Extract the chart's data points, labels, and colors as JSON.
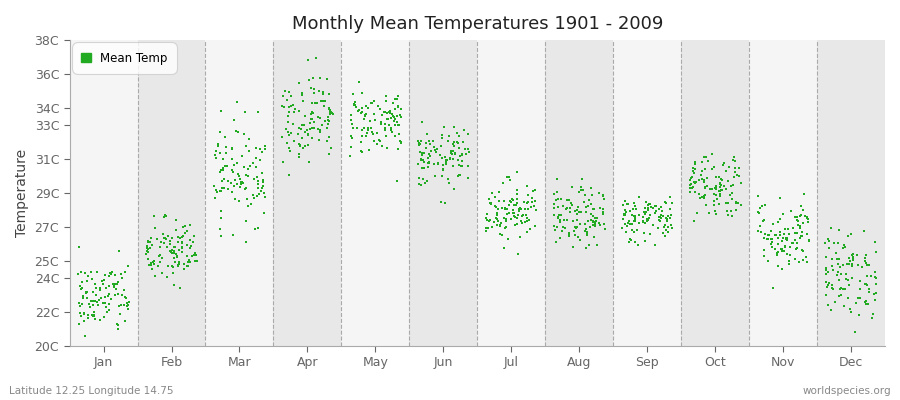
{
  "title": "Monthly Mean Temperatures 1901 - 2009",
  "ylabel": "Temperature",
  "bottom_left": "Latitude 12.25 Longitude 14.75",
  "bottom_right": "worldspecies.org",
  "legend_label": "Mean Temp",
  "dot_color": "#22aa22",
  "figure_bg": "#ffffff",
  "plot_bg": "#f5f5f5",
  "band_color_light": "#f5f5f5",
  "band_color_dark": "#e8e8e8",
  "ylim": [
    20,
    38
  ],
  "ytick_labels": [
    "20C",
    "22C",
    "24C",
    "25C",
    "27C",
    "29C",
    "31C",
    "33C",
    "34C",
    "36C",
    "38C"
  ],
  "ytick_values": [
    20,
    22,
    24,
    25,
    27,
    29,
    31,
    33,
    34,
    36,
    38
  ],
  "months": [
    "Jan",
    "Feb",
    "Mar",
    "Apr",
    "May",
    "Jun",
    "Jul",
    "Aug",
    "Sep",
    "Oct",
    "Nov",
    "Dec"
  ],
  "monthly_means": [
    22.8,
    25.5,
    30.2,
    33.5,
    33.2,
    31.0,
    28.0,
    27.5,
    27.5,
    29.5,
    26.5,
    24.2
  ],
  "monthly_stds": [
    1.1,
    1.0,
    1.5,
    1.3,
    1.0,
    0.9,
    0.9,
    0.9,
    0.7,
    1.0,
    1.1,
    1.3
  ],
  "n_years": 109,
  "dot_size": 3
}
